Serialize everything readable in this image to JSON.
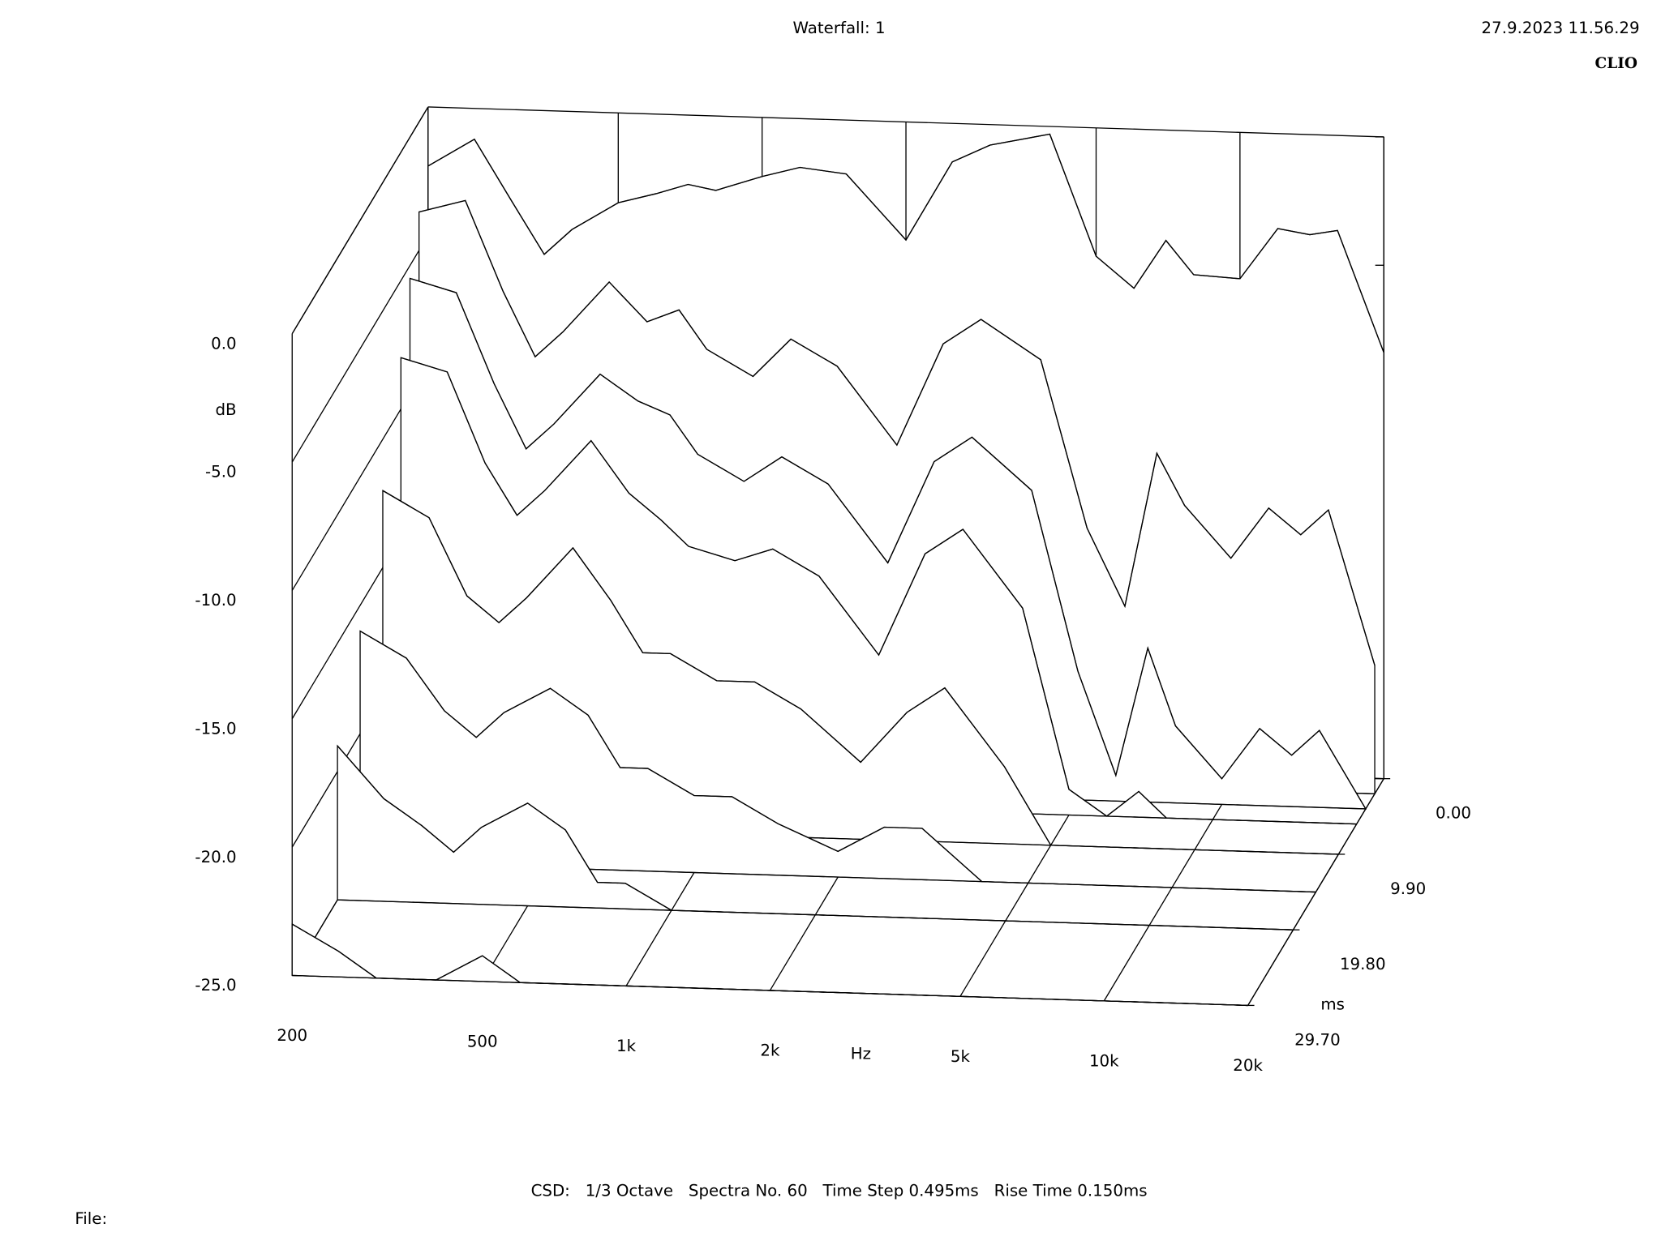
{
  "chart_data": {
    "type": "waterfall",
    "title": "Waterfall: 1",
    "timestamp": "27.9.2023 11.56.29",
    "brand": "CLIO",
    "footer": "CSD:   1/3 Octave   Spectra No. 60   Time Step 0.495ms   Rise Time 0.150ms",
    "file_label": "File:",
    "x_label": "Hz",
    "y_label": "dB",
    "z_label": "ms",
    "xscale": "log",
    "xlim": [
      200,
      20000
    ],
    "xticks": [
      200,
      500,
      {
        "value": 1000,
        "label": "1k"
      },
      {
        "value": 2000,
        "label": "2k"
      },
      {
        "value": 5000,
        "label": "5k"
      },
      {
        "value": 10000,
        "label": "10k"
      },
      {
        "value": 20000,
        "label": "20k"
      }
    ],
    "ylim": [
      -25,
      0
    ],
    "yticks": [
      {
        "value": 0,
        "label": "0.0"
      },
      {
        "value": -5,
        "label": "-5.0"
      },
      {
        "value": -10,
        "label": "-10.0"
      },
      {
        "value": -15,
        "label": "-15.0"
      },
      {
        "value": -20,
        "label": "-20.0"
      },
      {
        "value": -25,
        "label": "-25.0"
      }
    ],
    "zlim": [
      0,
      29.7
    ],
    "zticks": [
      {
        "value": 0,
        "label": "0.00"
      },
      {
        "value": 9.9,
        "label": "9.90"
      },
      {
        "value": 19.8,
        "label": "19.80"
      },
      {
        "value": 29.7,
        "label": "29.70"
      }
    ],
    "x": [
      200,
      250,
      300,
      350,
      400,
      500,
      600,
      700,
      800,
      1000,
      1200,
      1500,
      2000,
      2500,
      3000,
      4000,
      5000,
      6000,
      7000,
      8000,
      10000,
      12000,
      14000,
      16000,
      20000
    ],
    "series": [
      {
        "time": 0,
        "values": [
          -2.3,
          -1.2,
          -3.6,
          -5.6,
          -4.6,
          -3.5,
          -3.1,
          -2.7,
          -2.9,
          -2.3,
          -1.9,
          -2.1,
          -4.6,
          -1.5,
          -0.8,
          -0.3,
          -5.0,
          -6.2,
          -4.3,
          -5.6,
          -5.7,
          -3.7,
          -3.9,
          -3.7,
          -8.4
        ]
      },
      {
        "time": 1.98,
        "values": [
          -3.5,
          -3.0,
          -6.5,
          -9.0,
          -8.0,
          -6.0,
          -7.5,
          -7.0,
          -8.5,
          -9.5,
          -8.0,
          -9.0,
          -12,
          -8.0,
          -7.0,
          -8.5,
          -15,
          -18,
          -12,
          -14,
          -16,
          -14,
          -15,
          -14,
          -20
        ]
      },
      {
        "time": 3.96,
        "values": [
          -5.5,
          -6.0,
          -9.5,
          -12,
          -11,
          -9.0,
          -10,
          -10.5,
          -12,
          -13,
          -12,
          -13,
          -16,
          -12,
          -11,
          -13,
          -20,
          -24,
          -19,
          -22,
          -24,
          -22,
          -23,
          -22,
          -25
        ]
      },
      {
        "time": 5.94,
        "values": [
          -8.0,
          -8.5,
          -12,
          -14,
          -13,
          -11,
          -13,
          -14,
          -15,
          -15.5,
          -15,
          -16,
          -19,
          -15,
          -14,
          -17,
          -24,
          -25,
          -24,
          -25,
          -25,
          -25,
          -25,
          -25,
          -25
        ]
      },
      {
        "time": 9.9,
        "values": [
          -12,
          -13,
          -16,
          -17,
          -16,
          -14,
          -16,
          -18,
          -18,
          -19,
          -19,
          -20,
          -22,
          -20,
          -19,
          -22,
          -25,
          -25,
          -25,
          -25,
          -25,
          -25,
          -25,
          -25,
          -25
        ]
      },
      {
        "time": 14.85,
        "values": [
          -16,
          -17,
          -19,
          -20,
          -19,
          -18,
          -19,
          -21,
          -21,
          -22,
          -22,
          -23,
          -24,
          -23,
          -23,
          -25,
          -25,
          -25,
          -25,
          -25,
          -25,
          -25,
          -25,
          -25,
          -25
        ]
      },
      {
        "time": 19.8,
        "values": [
          -19,
          -21,
          -22,
          -23,
          -22,
          -21,
          -22,
          -24,
          -24,
          -25,
          -25,
          -25,
          -25,
          -25,
          -25,
          -25,
          -25,
          -25,
          -25,
          -25,
          -25,
          -25,
          -25,
          -25,
          -25
        ]
      },
      {
        "time": 29.7,
        "values": [
          -23,
          -24,
          -25,
          -25,
          -25,
          -24,
          -25,
          -25,
          -25,
          -25,
          -25,
          -25,
          -25,
          -25,
          -25,
          -25,
          -25,
          -25,
          -25,
          -25,
          -25,
          -25,
          -25,
          -25,
          -25
        ]
      }
    ]
  }
}
